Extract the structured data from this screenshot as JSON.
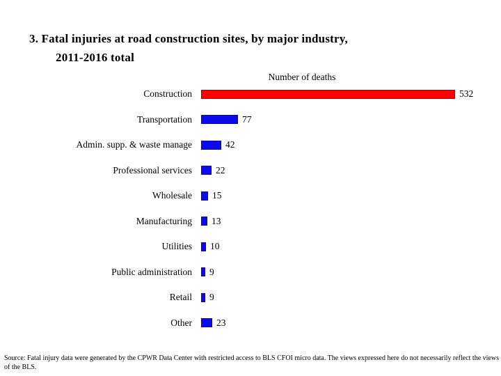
{
  "page": {
    "background_color": "#ffffff",
    "text_color": "#000000"
  },
  "title": {
    "line1": "3. Fatal injuries at road construction sites, by major industry,",
    "line2": "2011-2016 total"
  },
  "chart_data": {
    "type": "bar",
    "orientation": "horizontal",
    "title": "Number of deaths",
    "xlabel": "Number of deaths",
    "ylabel": "",
    "grid": false,
    "legend": false,
    "value_range": [
      0,
      560
    ],
    "categories": [
      "Construction",
      "Transportation",
      "Admin. supp. & waste manage",
      "Professional services",
      "Wholesale",
      "Manufacturing",
      "Utilities",
      "Public administration",
      "Retail",
      "Other"
    ],
    "values": [
      532,
      77,
      42,
      22,
      15,
      13,
      10,
      9,
      9,
      23
    ],
    "bar_colors": [
      "#fe0000",
      "#0b0bee",
      "#0b0bee",
      "#0b0bee",
      "#0b0bee",
      "#0b0bee",
      "#0b0bee",
      "#0b0bee",
      "#0b0bee",
      "#0b0bee"
    ],
    "highlight_color": "#fe0000",
    "default_bar_color": "#0b0bee",
    "data_labels_shown": true
  },
  "source_note": "Source: Fatal injury data were generated by the CPWR Data Center with restricted access to BLS CFOI micro data.  The views expressed here do not necessarily reflect the views of the BLS."
}
